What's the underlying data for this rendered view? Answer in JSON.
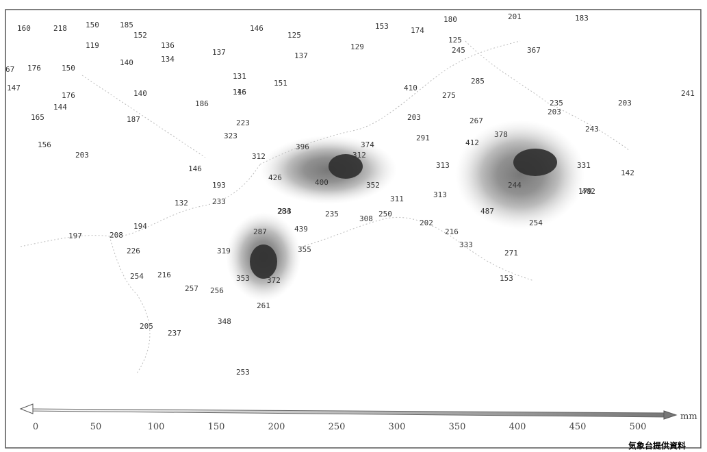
{
  "station_values": [
    "160",
    "218",
    "150",
    "185",
    "152",
    "119",
    "136",
    "140",
    "134",
    "137",
    "146",
    "125",
    "137",
    "131",
    "151",
    "140",
    "186",
    "116",
    "146",
    "129",
    "153",
    "174",
    "180",
    "201",
    "183",
    "125",
    "245",
    "367",
    "285",
    "235",
    "203",
    "203",
    "241",
    "243",
    "203",
    "267",
    "291",
    "410",
    "275",
    "67",
    "176",
    "150",
    "147",
    "176",
    "144",
    "165",
    "187",
    "223",
    "323",
    "412",
    "378",
    "313",
    "331",
    "142",
    "402",
    "244",
    "179",
    "156",
    "203",
    "146",
    "312",
    "396",
    "374",
    "312",
    "193",
    "426",
    "400",
    "352",
    "233",
    "311",
    "313",
    "233",
    "132",
    "284",
    "235",
    "308",
    "250",
    "202",
    "487",
    "254",
    "194",
    "197",
    "208",
    "439",
    "287",
    "216",
    "226",
    "319",
    "355",
    "333",
    "271",
    "254",
    "216",
    "353",
    "372",
    "257",
    "256",
    "153",
    "261",
    "348",
    "205",
    "237",
    "253"
  ],
  "scale": {
    "ticks": [
      "0",
      "50",
      "100",
      "150",
      "200",
      "250",
      "300",
      "350",
      "400",
      "450",
      "500"
    ],
    "unit": "mm"
  },
  "credit": "気象台提供資料",
  "colors": {
    "high": "#2e2e2e",
    "mid": "#8a8a8a",
    "low": "#d2d2d2",
    "coast": "#b5b5b5"
  }
}
